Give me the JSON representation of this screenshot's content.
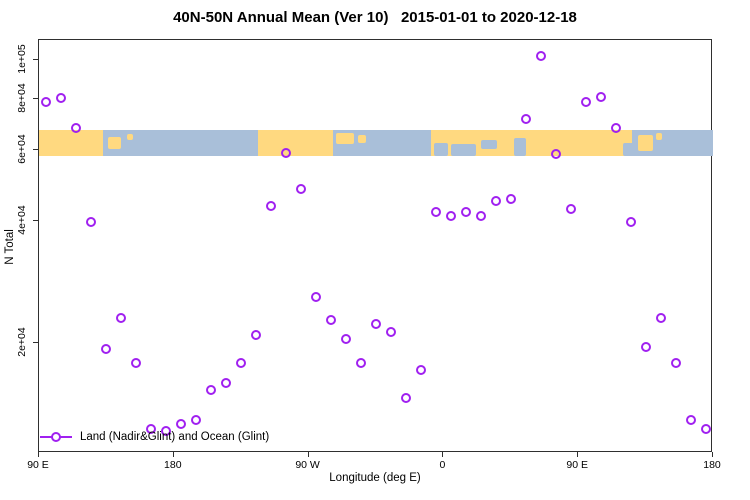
{
  "page": {
    "title": "40N-50N Annual Mean (Ver 10)   2015-01-01 to 2020-12-18"
  },
  "colors": {
    "marker": "#A020F0",
    "land": "#FFD980",
    "ocean": "#A9BFD9",
    "axis": "#2f2f2f",
    "text": "#000000"
  },
  "chart_data": {
    "type": "scatter",
    "title": "40N-50N Annual Mean (Ver 10)   2015-01-01 to 2020-12-18",
    "xlabel": "Longitude (deg E)",
    "ylabel": "N Total",
    "x_scale": "linear",
    "y_scale": "log",
    "xlim": [
      -270,
      180
    ],
    "ylim": [
      10700,
      112000
    ],
    "grid": false,
    "legend": {
      "label": "Land (Nadir&Glint) and Ocean (Glint)",
      "position": "bottom-left"
    },
    "x_ticks": [
      {
        "x": -270,
        "label": "90 E"
      },
      {
        "x": -180,
        "label": "180"
      },
      {
        "x": -90,
        "label": "90 W"
      },
      {
        "x": 0,
        "label": "0"
      },
      {
        "x": 90,
        "label": "90 E"
      },
      {
        "x": 180,
        "label": "180"
      }
    ],
    "y_ticks": [
      {
        "value": 100000,
        "label": "1e+05"
      },
      {
        "value": 80000,
        "label": "8e+04"
      },
      {
        "value": 60000,
        "label": "6e+04"
      },
      {
        "value": 40000,
        "label": "4e+04"
      },
      {
        "value": 20000,
        "label": "2e+04"
      }
    ],
    "series": [
      {
        "name": "Land (Nadir&Glint) and Ocean (Glint)",
        "marker": "open-circle",
        "color": "#A020F0",
        "points": [
          {
            "lon": -265,
            "n": 78500
          },
          {
            "lon": -255,
            "n": 80500
          },
          {
            "lon": -245,
            "n": 67800
          },
          {
            "lon": -235,
            "n": 39800
          },
          {
            "lon": -225,
            "n": 19300
          },
          {
            "lon": -215,
            "n": 23100
          },
          {
            "lon": -205,
            "n": 17900
          },
          {
            "lon": -195,
            "n": 12300
          },
          {
            "lon": -185,
            "n": 12100
          },
          {
            "lon": -175,
            "n": 12600
          },
          {
            "lon": -165,
            "n": 12900
          },
          {
            "lon": -155,
            "n": 15300
          },
          {
            "lon": -145,
            "n": 15900
          },
          {
            "lon": -135,
            "n": 17900
          },
          {
            "lon": -125,
            "n": 20900
          },
          {
            "lon": -115,
            "n": 43600
          },
          {
            "lon": -105,
            "n": 58900
          },
          {
            "lon": -95,
            "n": 48000
          },
          {
            "lon": -85,
            "n": 26000
          },
          {
            "lon": -75,
            "n": 22800
          },
          {
            "lon": -65,
            "n": 20500
          },
          {
            "lon": -55,
            "n": 17900
          },
          {
            "lon": -45,
            "n": 22300
          },
          {
            "lon": -35,
            "n": 21300
          },
          {
            "lon": -25,
            "n": 14600
          },
          {
            "lon": -15,
            "n": 17200
          },
          {
            "lon": -5,
            "n": 42000
          },
          {
            "lon": 5,
            "n": 41200
          },
          {
            "lon": 15,
            "n": 42200
          },
          {
            "lon": 25,
            "n": 41100
          },
          {
            "lon": 35,
            "n": 44700
          },
          {
            "lon": 45,
            "n": 45200
          },
          {
            "lon": 55,
            "n": 71400
          },
          {
            "lon": 65,
            "n": 102000
          },
          {
            "lon": 75,
            "n": 58500
          },
          {
            "lon": 85,
            "n": 42800
          },
          {
            "lon": 95,
            "n": 78500
          },
          {
            "lon": 105,
            "n": 81000
          },
          {
            "lon": 115,
            "n": 67800
          },
          {
            "lon": 125,
            "n": 39800
          },
          {
            "lon": 135,
            "n": 19500
          },
          {
            "lon": 145,
            "n": 23100
          },
          {
            "lon": 155,
            "n": 17900
          },
          {
            "lon": 165,
            "n": 12900
          },
          {
            "lon": 175,
            "n": 12300
          }
        ]
      }
    ],
    "map_strip": {
      "description": "land/ocean strip for 40N-50N latitude band",
      "value_top": 67000,
      "value_bottom": 58000,
      "segments": [
        {
          "from": -270,
          "to": -227,
          "surface": "land"
        },
        {
          "from": -227,
          "to": -124,
          "surface": "ocean"
        },
        {
          "from": -124,
          "to": -74,
          "surface": "land"
        },
        {
          "from": -74,
          "to": -8,
          "surface": "ocean"
        },
        {
          "from": -8,
          "to": 126,
          "surface": "land"
        },
        {
          "from": 126,
          "to": 180,
          "surface": "ocean"
        }
      ],
      "patches": [
        {
          "from": -224,
          "to": -215,
          "top": 0.25,
          "height": 0.5,
          "surface": "land"
        },
        {
          "from": -211,
          "to": -207,
          "top": 0.15,
          "height": 0.25,
          "surface": "land"
        },
        {
          "from": -72,
          "to": -60,
          "top": 0.1,
          "height": 0.45,
          "surface": "land"
        },
        {
          "from": -57,
          "to": -52,
          "top": 0.2,
          "height": 0.3,
          "surface": "land"
        },
        {
          "from": -6,
          "to": 3,
          "top": 0.5,
          "height": 0.5,
          "surface": "ocean"
        },
        {
          "from": 5,
          "to": 22,
          "top": 0.55,
          "height": 0.45,
          "surface": "ocean"
        },
        {
          "from": 25,
          "to": 36,
          "top": 0.4,
          "height": 0.35,
          "surface": "ocean"
        },
        {
          "from": 47,
          "to": 55,
          "top": 0.3,
          "height": 0.7,
          "surface": "ocean"
        },
        {
          "from": 120,
          "to": 127,
          "top": 0.5,
          "height": 0.5,
          "surface": "ocean"
        },
        {
          "from": 130,
          "to": 140,
          "top": 0.2,
          "height": 0.6,
          "surface": "land"
        },
        {
          "from": 142,
          "to": 146,
          "top": 0.1,
          "height": 0.3,
          "surface": "land"
        }
      ]
    }
  }
}
